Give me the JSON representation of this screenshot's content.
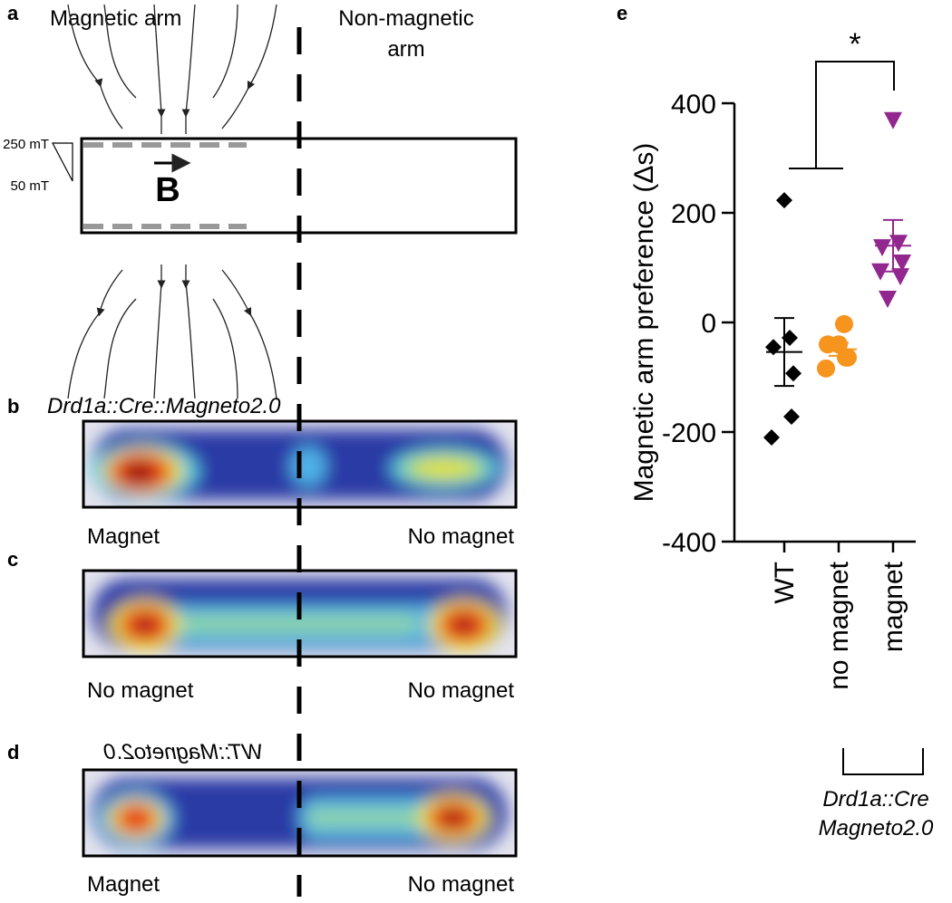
{
  "panels": {
    "a": {
      "letter": "a",
      "left_title": "Magnetic arm",
      "right_title_1": "Non-magnetic",
      "right_title_2": "arm",
      "high": "250 mT",
      "low": "50 mT",
      "field": "B"
    },
    "b": {
      "letter": "b",
      "genotype": "Drd1a::Cre::Magneto2.0",
      "left": "Magnet",
      "right": "No magnet"
    },
    "c": {
      "letter": "c",
      "left": "No magnet",
      "right": "No magnet"
    },
    "d": {
      "letter": "d",
      "genotype": "WT::Magneto2.0",
      "left": "Magnet",
      "right": "No magnet"
    },
    "e": {
      "letter": "e",
      "significance": "*",
      "group_label_1": "Drd1a::Cre",
      "group_label_2": "Magneto2.0"
    }
  },
  "chart_data": {
    "type": "strip",
    "ylabel": "Magnetic arm preference (Δs)",
    "categories": [
      "WT",
      "no magnet",
      "magnet"
    ],
    "ylim": [
      -400,
      400
    ],
    "yticks": [
      -400,
      -200,
      0,
      200,
      400
    ],
    "series": [
      {
        "color": "#000000",
        "marker": "diamond",
        "values": [
          223,
          -28,
          -45,
          -93,
          -172,
          -210
        ],
        "mean": -54,
        "sem": 62
      },
      {
        "color": "#f7941d",
        "marker": "circle",
        "values": [
          -40,
          -3,
          -40,
          -64,
          -64,
          -84
        ],
        "mean": -49,
        "sem": 12
      },
      {
        "color": "#92278f",
        "marker": "triangle-down",
        "values": [
          369,
          145,
          137,
          109,
          84,
          93,
          43
        ],
        "mean": 140,
        "sem": 47
      }
    ]
  }
}
